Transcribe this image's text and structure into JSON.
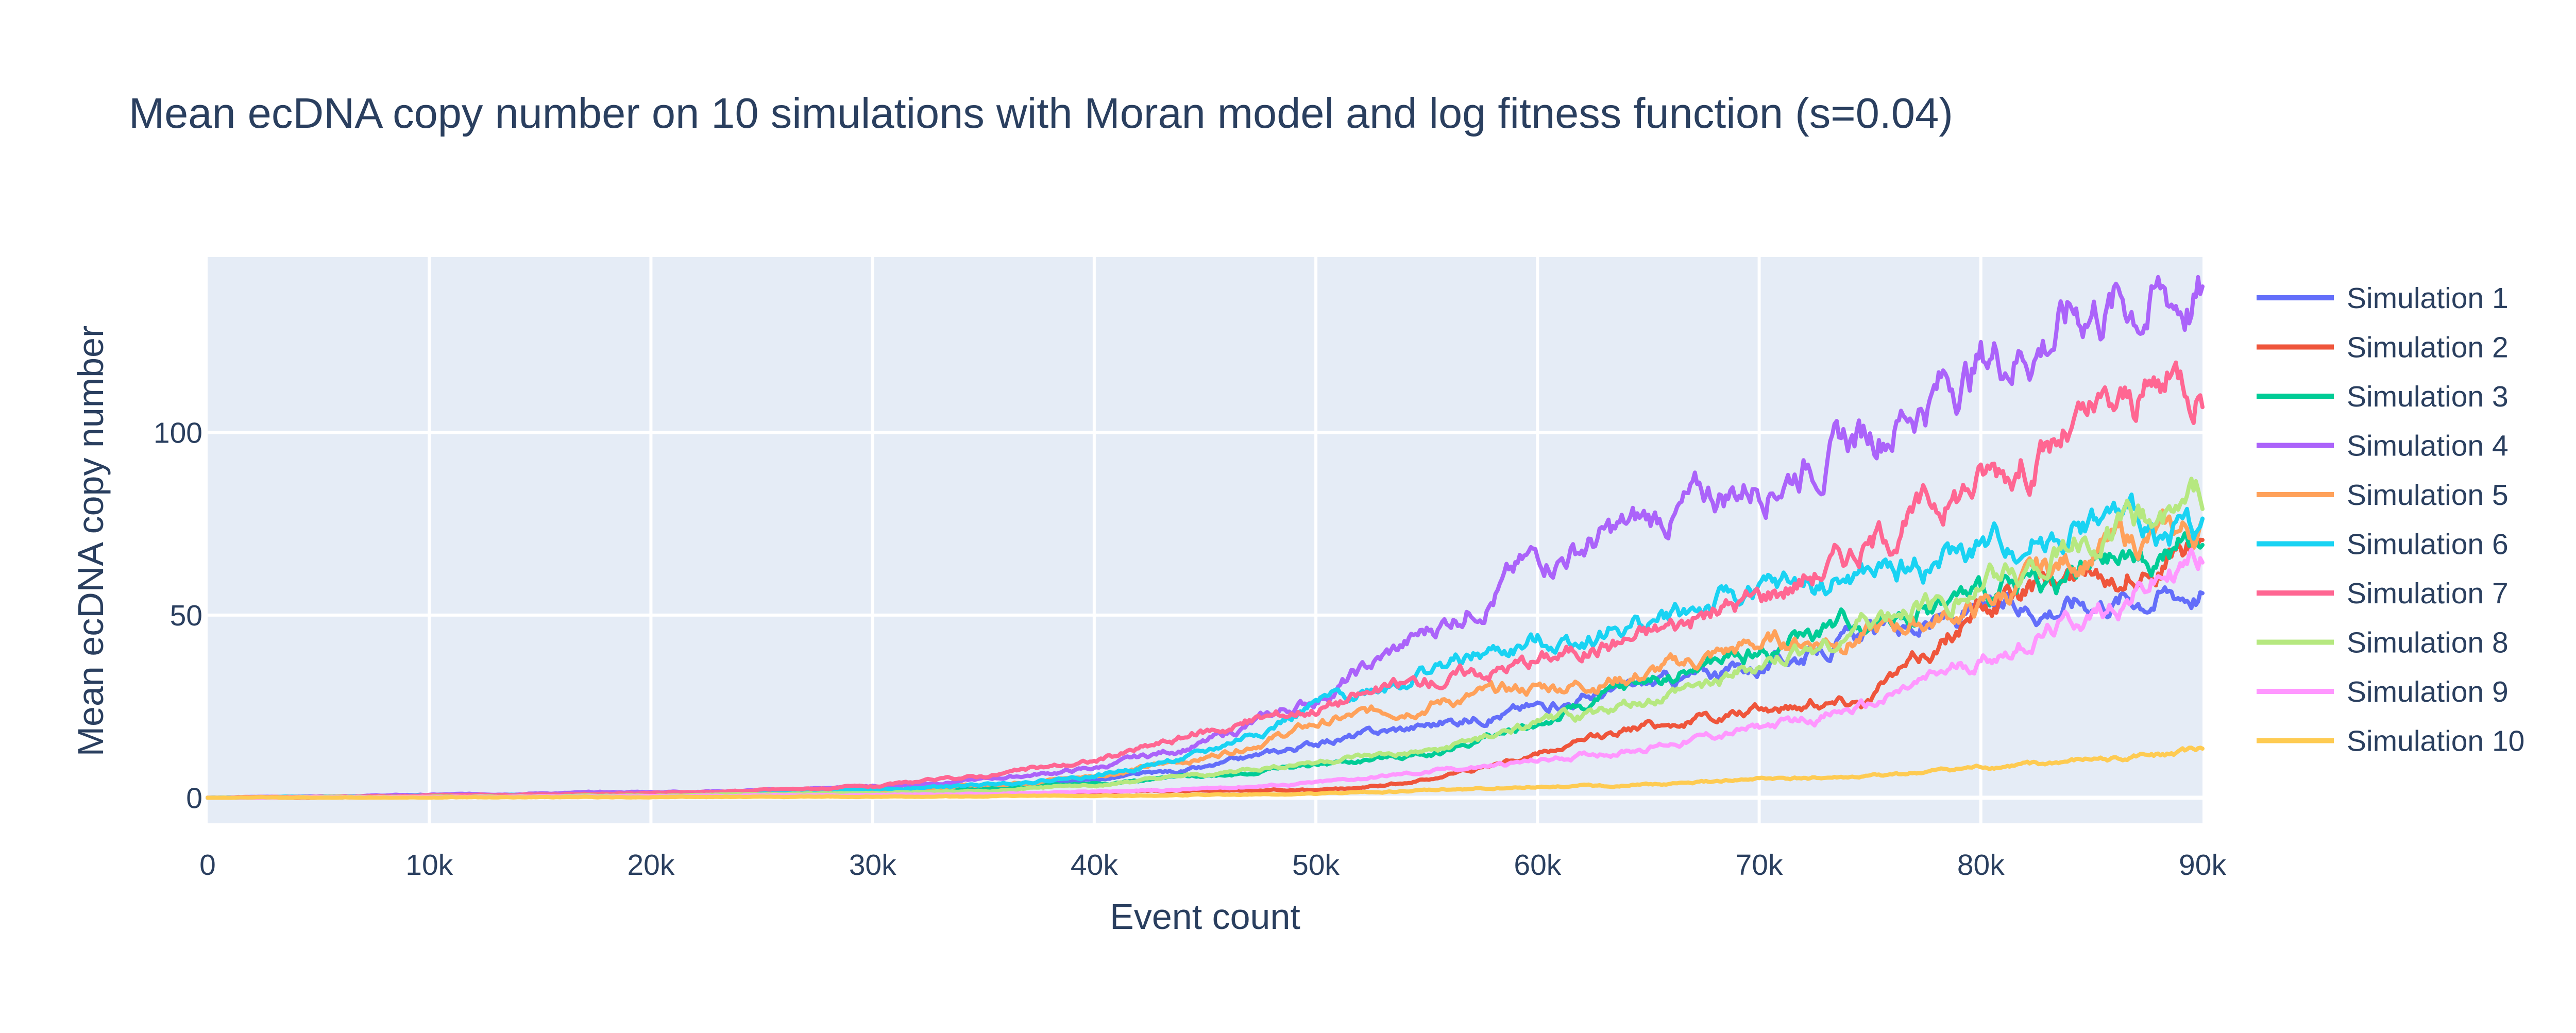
{
  "chart_data": {
    "type": "line",
    "title": "Mean ecDNA copy number on 10 simulations with Moran model and log fitness function (s=0.04)",
    "xlabel": "Event count",
    "ylabel": "Mean ecDNA copy number",
    "xlim": [
      0,
      90000
    ],
    "ylim": [
      -7,
      148
    ],
    "x_ticks": [
      0,
      10000,
      20000,
      30000,
      40000,
      50000,
      60000,
      70000,
      80000,
      90000
    ],
    "x_tick_labels": [
      "0",
      "10k",
      "20k",
      "30k",
      "40k",
      "50k",
      "60k",
      "70k",
      "80k",
      "90k"
    ],
    "y_ticks": [
      0,
      50,
      100
    ],
    "y_tick_labels": [
      "0",
      "50",
      "100"
    ],
    "grid": true,
    "legend_position": "right",
    "plot_background": "#e5ecf6",
    "series": [
      {
        "name": "Simulation 1",
        "color": "#636efa",
        "x": [
          0,
          10000,
          20000,
          30000,
          35000,
          40000,
          45000,
          50000,
          55000,
          60000,
          65000,
          70000,
          75000,
          80000,
          85000,
          90000
        ],
        "y": [
          0,
          0.4,
          0.9,
          2,
          3,
          5,
          8,
          15,
          20,
          25,
          31,
          36,
          45,
          50,
          55,
          58
        ]
      },
      {
        "name": "Simulation 2",
        "color": "#ef553b",
        "x": [
          0,
          10000,
          20000,
          30000,
          35000,
          40000,
          45000,
          50000,
          52000,
          55000,
          60000,
          65000,
          70000,
          72000,
          75000,
          78000,
          80000,
          85000,
          90000
        ],
        "y": [
          0,
          0.2,
          0.4,
          0.8,
          1,
          1.5,
          2,
          2,
          2.5,
          5,
          12,
          20,
          24,
          26,
          28,
          42,
          52,
          62,
          70
        ]
      },
      {
        "name": "Simulation 3",
        "color": "#00cc96",
        "x": [
          0,
          10000,
          20000,
          30000,
          35000,
          40000,
          45000,
          50000,
          55000,
          60000,
          65000,
          70000,
          75000,
          80000,
          85000,
          90000
        ],
        "y": [
          0,
          0.3,
          0.6,
          1.3,
          2.5,
          4,
          6,
          9,
          12,
          20,
          32,
          40,
          50,
          55,
          62,
          69
        ]
      },
      {
        "name": "Simulation 4",
        "color": "#ab63fa",
        "x": [
          0,
          10000,
          15000,
          20000,
          25000,
          30000,
          35000,
          40000,
          45000,
          50000,
          55000,
          60000,
          65000,
          70000,
          75000,
          80000,
          83000,
          85000,
          90000
        ],
        "y": [
          0,
          0.8,
          1.2,
          1.6,
          2,
          3,
          5,
          8,
          15,
          27,
          45,
          65,
          75,
          87,
          100,
          120,
          127,
          135,
          137
        ]
      },
      {
        "name": "Simulation 5",
        "color": "#ffa15a",
        "x": [
          0,
          10000,
          20000,
          30000,
          35000,
          40000,
          45000,
          50000,
          55000,
          60000,
          65000,
          70000,
          75000,
          80000,
          85000,
          90000
        ],
        "y": [
          0,
          0.4,
          0.9,
          2,
          3.5,
          6,
          11,
          20,
          26,
          30,
          34,
          42,
          45,
          52,
          68,
          73
        ]
      },
      {
        "name": "Simulation 6",
        "color": "#19d3f3",
        "x": [
          0,
          10000,
          20000,
          30000,
          35000,
          40000,
          45000,
          50000,
          55000,
          60000,
          65000,
          70000,
          75000,
          80000,
          85000,
          90000
        ],
        "y": [
          0,
          0.5,
          1,
          2.2,
          3.5,
          6,
          12,
          25,
          35,
          42,
          48,
          56,
          60,
          67,
          75,
          73
        ]
      },
      {
        "name": "Simulation 7",
        "color": "#ff6692",
        "x": [
          0,
          10000,
          20000,
          30000,
          35000,
          40000,
          45000,
          50000,
          55000,
          60000,
          65000,
          70000,
          75000,
          80000,
          85000,
          90000
        ],
        "y": [
          0,
          0.6,
          1.2,
          3,
          6,
          10,
          18,
          25,
          32,
          38,
          45,
          55,
          70,
          88,
          102,
          118
        ]
      },
      {
        "name": "Simulation 8",
        "color": "#b6e880",
        "x": [
          0,
          10000,
          20000,
          30000,
          35000,
          40000,
          45000,
          50000,
          55000,
          60000,
          65000,
          70000,
          75000,
          80000,
          85000,
          90000
        ],
        "y": [
          0,
          0.3,
          0.6,
          1.2,
          2,
          3.5,
          6,
          10,
          12,
          20,
          26,
          35,
          48,
          58,
          72,
          80
        ]
      },
      {
        "name": "Simulation 9",
        "color": "#ff97ff",
        "x": [
          0,
          10000,
          20000,
          30000,
          35000,
          40000,
          45000,
          50000,
          55000,
          60000,
          65000,
          70000,
          75000,
          80000,
          85000,
          90000
        ],
        "y": [
          0,
          0.2,
          0.4,
          0.8,
          1,
          1.5,
          2.5,
          4,
          7,
          10,
          14,
          19,
          25,
          38,
          50,
          66
        ]
      },
      {
        "name": "Simulation 10",
        "color": "#fecb52",
        "x": [
          0,
          10000,
          20000,
          30000,
          40000,
          50000,
          55000,
          60000,
          65000,
          70000,
          75000,
          80000,
          85000,
          90000
        ],
        "y": [
          0,
          0.1,
          0.2,
          0.3,
          0.5,
          1,
          2,
          3,
          3.5,
          5,
          5.5,
          8,
          10,
          13
        ]
      }
    ]
  }
}
